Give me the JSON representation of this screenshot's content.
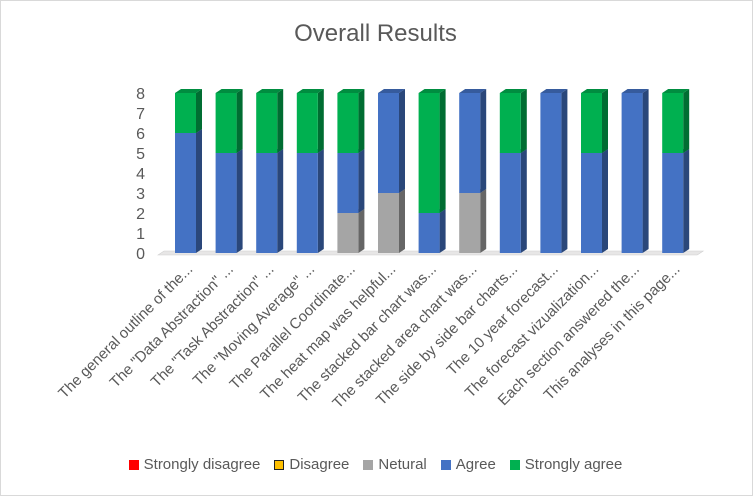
{
  "chart_data": {
    "type": "bar",
    "stacked": true,
    "style": "3d-column",
    "title": "Overall Results",
    "xlabel": "",
    "ylabel": "",
    "ylim": [
      0,
      8
    ],
    "yticks": [
      0,
      1,
      2,
      3,
      4,
      5,
      6,
      7,
      8
    ],
    "grid": false,
    "legend_position": "bottom",
    "categories": [
      "The general outline of the...",
      "The \"Data Abstraction\" ...",
      "The \"Task Abstraction\" ...",
      "The \"Moving Average\" ...",
      "The Parallel Coordinate...",
      "The heat map was helpful...",
      "The stacked bar chart was...",
      "The stacked area chart was...",
      "The side by side bar charts...",
      "The 10 year forecast...",
      "The forecast vizualization...",
      "Each section answered the...",
      "This analyses in this page..."
    ],
    "series": [
      {
        "name": "Strongly disagree",
        "color": "#ff0000",
        "values": [
          0,
          0,
          0,
          0,
          0,
          0,
          0,
          0,
          0,
          0,
          0,
          0,
          0
        ]
      },
      {
        "name": "Disagree",
        "color": "#ffc000",
        "values": [
          0,
          0,
          0,
          0,
          0,
          0,
          0,
          0,
          0,
          0,
          0,
          0,
          0
        ]
      },
      {
        "name": "Netural",
        "color": "#a5a5a5",
        "values": [
          0,
          0,
          0,
          0,
          2,
          3,
          0,
          3,
          0,
          0,
          0,
          0,
          0
        ]
      },
      {
        "name": "Agree",
        "color": "#4472c4",
        "values": [
          6,
          5,
          5,
          5,
          3,
          5,
          2,
          5,
          5,
          8,
          5,
          8,
          5
        ]
      },
      {
        "name": "Strongly agree",
        "color": "#00b050",
        "values": [
          2,
          3,
          3,
          3,
          3,
          0,
          6,
          0,
          3,
          0,
          3,
          0,
          3
        ]
      }
    ]
  }
}
